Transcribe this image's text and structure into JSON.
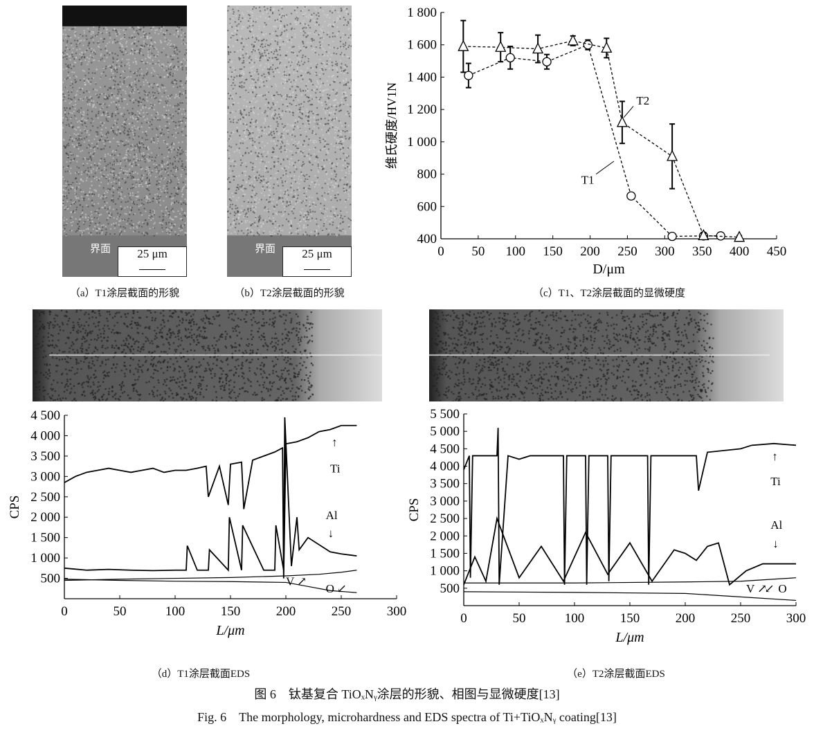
{
  "panels": {
    "a": {
      "caption": "（a）T1涂层截面的形貌",
      "interface_label": "界面",
      "scale_label": "25 μm"
    },
    "b": {
      "caption": "（b）T2涂层截面的形貌",
      "interface_label": "界面",
      "scale_label": "25 μm"
    },
    "c": {
      "caption": "（c）T1、T2涂层截面的显微硬度"
    },
    "d": {
      "caption": "（d）T1涂层截面EDS"
    },
    "e": {
      "caption": "（e）T2涂层截面EDS"
    }
  },
  "figure_caption_cn": "图 6　钛基复合 TiOₓNᵧ涂层的形貌、相图与显微硬度[13]",
  "figure_caption_en": "Fig. 6　The morphology, microhardness and EDS spectra of Ti+TiOₓNᵧ coating[13]",
  "chart_data": [
    {
      "type": "scatter",
      "panel": "c",
      "xlabel": "D/μm",
      "ylabel": "维氏硬度/HV1N",
      "xlim": [
        0,
        450
      ],
      "ylim": [
        400,
        1800
      ],
      "xticks": [
        "0",
        "50",
        "100",
        "150",
        "200",
        "250",
        "300",
        "350",
        "400",
        "450"
      ],
      "yticks": [
        "400",
        "600",
        "800",
        "1 000",
        "1 200",
        "1 400",
        "1 600",
        "1 800"
      ],
      "series": [
        {
          "name": "T1",
          "marker": "circle",
          "x": [
            37,
            93,
            142,
            197,
            255,
            310,
            352,
            375
          ],
          "y": [
            1410,
            1520,
            1495,
            1600,
            665,
            415,
            418,
            418
          ],
          "err": [
            75,
            70,
            45,
            30,
            15,
            10,
            10,
            10
          ]
        },
        {
          "name": "T2",
          "marker": "triangle",
          "x": [
            30,
            80,
            130,
            177,
            222,
            243,
            310,
            352,
            400
          ],
          "y": [
            1590,
            1585,
            1575,
            1625,
            1580,
            1120,
            910,
            420,
            410
          ],
          "err": [
            160,
            90,
            85,
            30,
            60,
            130,
            200,
            15,
            10
          ]
        }
      ]
    },
    {
      "type": "line",
      "panel": "d",
      "xlabel": "L/μm",
      "ylabel": "CPS",
      "xlim": [
        0,
        300
      ],
      "ylim": [
        0,
        4500
      ],
      "xticks": [
        "0",
        "50",
        "100",
        "150",
        "200",
        "250",
        "300"
      ],
      "yticks": [
        "500",
        "1 000",
        "1 500",
        "2 000",
        "2 500",
        "3 000",
        "3 500",
        "4 000",
        "4 500"
      ],
      "series": [
        {
          "name": "Ti",
          "x": [
            0,
            10,
            20,
            30,
            40,
            50,
            60,
            70,
            80,
            90,
            100,
            110,
            120,
            128,
            130,
            140,
            148,
            150,
            160,
            162,
            170,
            180,
            190,
            197,
            198,
            200,
            210,
            220,
            230,
            240,
            250,
            260,
            264
          ],
          "y": [
            2850,
            3000,
            3100,
            3150,
            3200,
            3150,
            3100,
            3150,
            3200,
            3100,
            3150,
            3150,
            3200,
            3250,
            2500,
            3250,
            2300,
            3300,
            3350,
            2200,
            3400,
            3500,
            3600,
            3700,
            500,
            3800,
            3850,
            3950,
            4100,
            4150,
            4250,
            4250,
            4250
          ]
        },
        {
          "name": "Al",
          "x": [
            0,
            20,
            40,
            60,
            80,
            100,
            110,
            111,
            120,
            130,
            131,
            148,
            149,
            160,
            161,
            180,
            190,
            191,
            198,
            199,
            205,
            210,
            212,
            220,
            240,
            250,
            264
          ],
          "y": [
            750,
            700,
            720,
            700,
            690,
            700,
            700,
            1300,
            700,
            700,
            1200,
            700,
            2000,
            700,
            1800,
            700,
            700,
            1800,
            700,
            4450,
            800,
            2000,
            1200,
            1500,
            1150,
            1100,
            1050
          ]
        },
        {
          "name": "V",
          "x": [
            0,
            50,
            100,
            150,
            200,
            230,
            250,
            264
          ],
          "y": [
            450,
            480,
            500,
            520,
            560,
            600,
            650,
            700
          ]
        },
        {
          "name": "O",
          "x": [
            0,
            50,
            100,
            150,
            200,
            220,
            240,
            264
          ],
          "y": [
            480,
            450,
            430,
            420,
            400,
            300,
            200,
            150
          ]
        }
      ],
      "annotations": [
        "Ti",
        "Al",
        "V",
        "O"
      ]
    },
    {
      "type": "line",
      "panel": "e",
      "xlabel": "L/μm",
      "ylabel": "CPS",
      "xlim": [
        0,
        300
      ],
      "ylim": [
        0,
        5500
      ],
      "xticks": [
        "0",
        "50",
        "100",
        "150",
        "200",
        "250",
        "300"
      ],
      "yticks": [
        "500",
        "1 000",
        "1 500",
        "2 000",
        "2 500",
        "3 000",
        "3 500",
        "4 000",
        "4 500",
        "5 000",
        "5 500"
      ],
      "series": [
        {
          "name": "Ti",
          "x": [
            0,
            5,
            6,
            8,
            20,
            30,
            31,
            32,
            40,
            50,
            60,
            80,
            90,
            91,
            93,
            100,
            110,
            111,
            113,
            120,
            130,
            131,
            133,
            140,
            150,
            160,
            166,
            167,
            169,
            180,
            200,
            210,
            212,
            220,
            250,
            260,
            280,
            300
          ],
          "y": [
            3900,
            4300,
            800,
            4300,
            4300,
            4300,
            5100,
            600,
            4300,
            4200,
            4300,
            4300,
            4300,
            600,
            4300,
            4300,
            4300,
            600,
            4300,
            4300,
            4300,
            700,
            4300,
            4300,
            4300,
            4300,
            4300,
            600,
            4300,
            4300,
            4300,
            4300,
            3300,
            4400,
            4500,
            4600,
            4650,
            4600
          ]
        },
        {
          "name": "Al",
          "x": [
            0,
            10,
            20,
            30,
            50,
            70,
            90,
            110,
            130,
            150,
            170,
            190,
            200,
            210,
            220,
            230,
            240,
            255,
            270,
            300
          ],
          "y": [
            600,
            1400,
            700,
            2500,
            800,
            1700,
            700,
            2100,
            900,
            1800,
            700,
            1600,
            1500,
            1300,
            1700,
            1800,
            600,
            1000,
            1200,
            1200
          ]
        },
        {
          "name": "V",
          "x": [
            0,
            100,
            200,
            250,
            300
          ],
          "y": [
            650,
            650,
            680,
            700,
            800
          ]
        },
        {
          "name": "O",
          "x": [
            0,
            100,
            200,
            250,
            300
          ],
          "y": [
            400,
            380,
            350,
            250,
            150
          ]
        }
      ],
      "annotations": [
        "Ti",
        "Al",
        "V",
        "O"
      ]
    }
  ]
}
